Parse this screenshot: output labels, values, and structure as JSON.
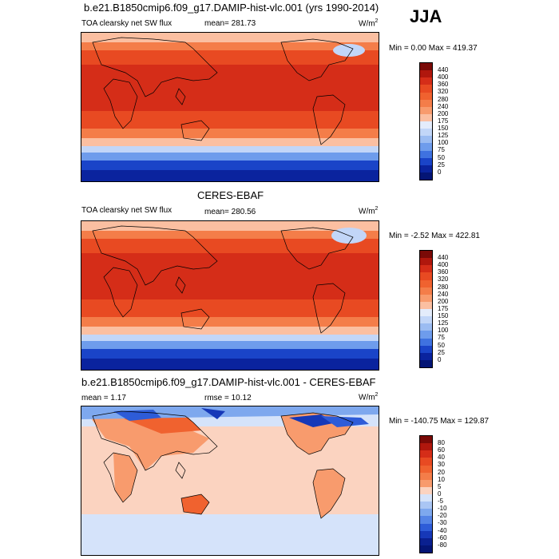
{
  "season": "JJA",
  "panels": [
    {
      "title": "b.e21.B1850cmip6.f09_g17.DAMIP-hist-vlc.001 (yrs 1990-2014)",
      "left_label": "TOA clearsky net SW flux",
      "center_label": "mean= 281.73",
      "unit": "W/m",
      "unit_sup": "2",
      "minmax": "Min =   0.00 Max = 419.37"
    },
    {
      "title": "CERES-EBAF",
      "left_label": "TOA clearsky net SW flux",
      "center_label": "mean= 280.56",
      "unit": "W/m",
      "unit_sup": "2",
      "minmax": "Min =  -2.52 Max = 422.81"
    },
    {
      "title": "b.e21.B1850cmip6.f09_g17.DAMIP-hist-vlc.001 - CERES-EBAF",
      "left_label": "mean =   1.17",
      "center_label": "rmse =  10.12",
      "unit": "W/m",
      "unit_sup": "2",
      "minmax": "Min = -140.75 Max = 129.87"
    }
  ],
  "colorbars": {
    "abs_levels": [
      "440",
      "400",
      "360",
      "320",
      "280",
      "240",
      "200",
      "175",
      "150",
      "125",
      "100",
      "75",
      "50",
      "25",
      "0"
    ],
    "abs_colors": [
      "#7a0a07",
      "#b0170d",
      "#d52d18",
      "#e84a22",
      "#f0622f",
      "#f47d49",
      "#f89b6d",
      "#fbbfa1",
      "#e4ecfb",
      "#c2d6f8",
      "#9bbcf2",
      "#6e9cec",
      "#3f72e0",
      "#1a44c8",
      "#0a239e",
      "#041575"
    ],
    "diff_levels": [
      "80",
      "60",
      "40",
      "30",
      "20",
      "10",
      "5",
      "0",
      "-5",
      "-10",
      "-20",
      "-30",
      "-40",
      "-60",
      "-80"
    ],
    "diff_colors": [
      "#7a0a07",
      "#b0170d",
      "#d52d18",
      "#e84a22",
      "#f0622f",
      "#f47d49",
      "#f89b6d",
      "#fbd3c0",
      "#d5e3fa",
      "#aac6f4",
      "#7ea8ee",
      "#5584e6",
      "#2e5cd8",
      "#1638b8",
      "#0a2090",
      "#041575"
    ]
  }
}
